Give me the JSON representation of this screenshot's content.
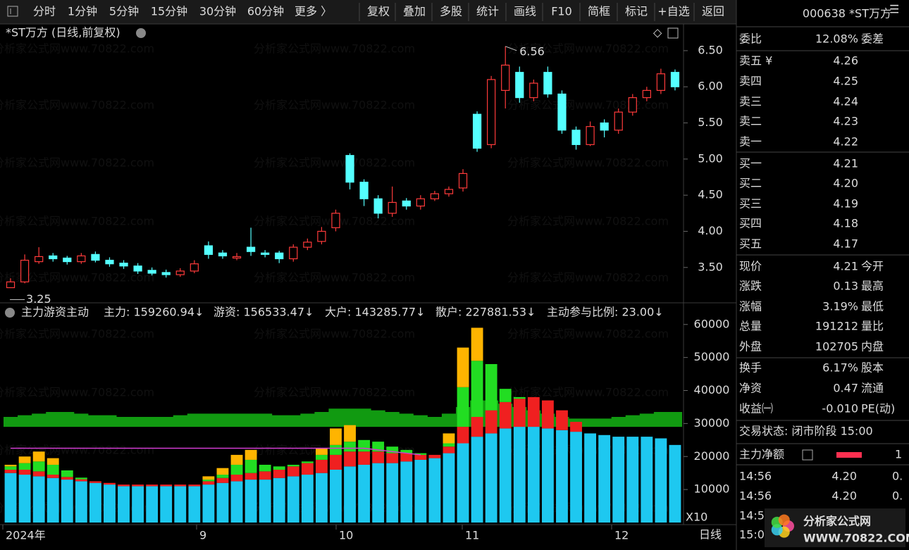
{
  "toolbar": {
    "periods": [
      "分时",
      "1分钟",
      "5分钟",
      "15分钟",
      "30分钟",
      "60分钟"
    ],
    "more": "更多 〉",
    "buttons": [
      "复权",
      "叠加",
      "多股",
      "统计",
      "画线",
      "F10",
      "简框",
      "标记",
      "+自选",
      "返回"
    ]
  },
  "watermark": "分析家公式网www.70822.com",
  "chart_data": [
    {
      "type": "candlestick",
      "title": "*ST万方 (日线,前复权)",
      "open": [
        3.22,
        3.3,
        3.58,
        3.66,
        3.63,
        3.58,
        3.68,
        3.6,
        3.56,
        3.52,
        3.46,
        3.43,
        3.4,
        3.45,
        3.8,
        3.7,
        3.63,
        3.78,
        3.7,
        3.7,
        3.62,
        3.78,
        3.86,
        4.05,
        5.05,
        4.68,
        4.45,
        4.25,
        4.42,
        4.35,
        4.45,
        4.52,
        4.6,
        5.62,
        5.2,
        5.95,
        6.2,
        5.85,
        6.2,
        5.9,
        5.4,
        5.2,
        5.5,
        5.4,
        5.65,
        5.85,
        5.95,
        6.2
      ],
      "high": [
        3.35,
        3.68,
        3.78,
        3.7,
        3.66,
        3.7,
        3.72,
        3.64,
        3.6,
        3.56,
        3.5,
        3.47,
        3.49,
        3.6,
        3.86,
        3.74,
        3.7,
        4.05,
        3.74,
        3.73,
        3.82,
        3.9,
        4.06,
        4.3,
        5.08,
        4.72,
        4.5,
        4.62,
        4.46,
        4.5,
        4.56,
        4.62,
        4.86,
        5.66,
        6.15,
        6.56,
        6.28,
        6.1,
        6.28,
        5.95,
        5.45,
        5.52,
        5.55,
        5.7,
        5.9,
        6.0,
        6.25,
        6.24
      ],
      "low": [
        3.25,
        3.28,
        3.55,
        3.58,
        3.54,
        3.55,
        3.57,
        3.51,
        3.48,
        3.41,
        3.39,
        3.36,
        3.37,
        3.42,
        3.62,
        3.62,
        3.6,
        3.66,
        3.64,
        3.56,
        3.58,
        3.74,
        3.82,
        4.0,
        4.58,
        4.35,
        4.18,
        4.2,
        4.3,
        4.3,
        4.42,
        4.48,
        4.55,
        5.1,
        5.15,
        5.7,
        5.78,
        5.8,
        5.85,
        5.35,
        5.13,
        5.18,
        5.3,
        5.35,
        5.6,
        5.8,
        5.9,
        5.95
      ],
      "close": [
        3.3,
        3.6,
        3.65,
        3.62,
        3.58,
        3.66,
        3.6,
        3.55,
        3.52,
        3.45,
        3.42,
        3.4,
        3.45,
        3.55,
        3.68,
        3.66,
        3.65,
        3.72,
        3.68,
        3.62,
        3.78,
        3.85,
        4.0,
        4.25,
        4.68,
        4.45,
        4.25,
        4.4,
        4.35,
        4.45,
        4.52,
        4.58,
        4.8,
        5.15,
        6.1,
        6.3,
        5.85,
        6.05,
        5.9,
        5.4,
        5.2,
        5.45,
        5.4,
        5.65,
        5.85,
        5.95,
        6.18,
        6.0
      ],
      "up_color": "#ff3b3b",
      "down_color": "#54ffff",
      "ylim": [
        3.03,
        6.86
      ],
      "yticks": [
        {
          "value": 3.5,
          "label": "3.50"
        },
        {
          "value": 4,
          "label": "4.00"
        },
        {
          "value": 4.5,
          "label": "4.50"
        },
        {
          "value": 5,
          "label": "5.00"
        },
        {
          "value": 5.5,
          "label": "5.50"
        },
        {
          "value": 6,
          "label": "6.00"
        },
        {
          "value": 6.5,
          "label": "6.50"
        }
      ],
      "annotations": [
        {
          "value": 6.56,
          "label": "6.56",
          "at": "high"
        },
        {
          "value": 3.25,
          "label": "3.25",
          "at": "low"
        }
      ],
      "x_labels": [
        "2024年",
        "9",
        "10",
        "11",
        "12"
      ],
      "period": "日线"
    },
    {
      "type": "stacked-bar",
      "title": "主力游资主动",
      "series": [
        {
          "label": "散户: 227881.53↓",
          "color": "#1ec8f0",
          "values": [
            15000,
            14500,
            14000,
            13500,
            13000,
            12500,
            12000,
            11500,
            11000,
            11000,
            11000,
            11000,
            11000,
            11000,
            11500,
            12000,
            12500,
            13000,
            13000,
            13500,
            14000,
            14500,
            15000,
            16000,
            17000,
            17500,
            18000,
            18000,
            18500,
            19000,
            19500,
            21000,
            24000,
            26000,
            27000,
            28500,
            29000,
            29000,
            28500,
            28000,
            27500,
            27000,
            26500,
            26000,
            26000,
            26000,
            25500,
            23500
          ]
        },
        {
          "label": "大户: 143285.77↓",
          "color": "#f02020",
          "values": [
            1000,
            1500,
            1500,
            1000,
            800,
            600,
            500,
            500,
            500,
            500,
            500,
            500,
            500,
            500,
            1000,
            1500,
            2000,
            2000,
            2500,
            2500,
            3000,
            3500,
            4000,
            4500,
            4500,
            4000,
            3500,
            3000,
            2500,
            1500,
            1000,
            2000,
            5000,
            6000,
            7000,
            8000,
            8500,
            9000,
            8500,
            6000,
            3000,
            0,
            0,
            0,
            0,
            0,
            0,
            0
          ]
        },
        {
          "label": "游资: 156533.47↓",
          "color": "#22dd22",
          "values": [
            1000,
            2000,
            3000,
            3000,
            2000,
            500,
            0,
            0,
            0,
            0,
            0,
            0,
            0,
            0,
            500,
            1000,
            3000,
            4000,
            2000,
            1000,
            500,
            500,
            1500,
            3000,
            3000,
            3500,
            3000,
            2000,
            1000,
            500,
            0,
            1000,
            12000,
            17000,
            14000,
            4000,
            500,
            0,
            0,
            0,
            0,
            0,
            0,
            0,
            0,
            0,
            0,
            0
          ]
        },
        {
          "label": "主力: 159260.94↓",
          "color": "#ffb400",
          "values": [
            500,
            2000,
            3000,
            2000,
            0,
            0,
            0,
            0,
            0,
            0,
            0,
            0,
            0,
            0,
            1000,
            2000,
            3000,
            3000,
            0,
            0,
            0,
            0,
            2000,
            5000,
            5000,
            0,
            0,
            0,
            0,
            0,
            0,
            3000,
            12000,
            10000,
            0,
            0,
            0,
            0,
            0,
            0,
            0,
            0,
            0,
            0,
            0,
            0,
            0,
            0
          ]
        }
      ],
      "line": {
        "label": "主动参与比例: 23.00↓",
        "color": "#d23cd2",
        "label_color": "#e6c800",
        "values": [
          22500,
          22500,
          22500,
          22500,
          22500,
          22500,
          22500,
          22500,
          22500,
          22500,
          22500,
          22500,
          22500,
          22500,
          22500,
          22500,
          22500,
          22500,
          22500,
          22500,
          22500,
          22500,
          22500,
          22500,
          22500,
          22500,
          22000,
          21500,
          21000,
          20500,
          null,
          null,
          null,
          null,
          null,
          null,
          null,
          null,
          null,
          null,
          null,
          null,
          null,
          null,
          null,
          null,
          null,
          null
        ]
      },
      "band": {
        "color": "#119a11",
        "low": 29000,
        "high": [
          32000,
          32500,
          33000,
          33500,
          33500,
          33000,
          32500,
          32500,
          32000,
          32000,
          32000,
          32000,
          32500,
          33000,
          33000,
          33000,
          33000,
          33000,
          33000,
          32500,
          32500,
          33000,
          33500,
          34500,
          34500,
          34500,
          34000,
          33500,
          33000,
          32500,
          32000,
          33000,
          35000,
          37000,
          37000,
          36000,
          35000,
          34000,
          33000,
          32000,
          31500,
          31500,
          31500,
          32000,
          32500,
          33000,
          33500,
          33500
        ]
      },
      "ylim": [
        0,
        64000
      ],
      "yticks": [
        10000,
        20000,
        30000,
        40000,
        50000,
        60000
      ],
      "scale_note": "X10"
    }
  ],
  "quote": {
    "code_name": "000638 *ST万方",
    "weibi": {
      "label": "委比",
      "value": "12.08%",
      "label2": "委差"
    },
    "asks": [
      [
        "卖五 ¥",
        "4.26"
      ],
      [
        "卖四",
        "4.25"
      ],
      [
        "卖三",
        "4.24"
      ],
      [
        "卖二",
        "4.23"
      ],
      [
        "卖一",
        "4.22"
      ]
    ],
    "bids": [
      [
        "买一",
        "4.21"
      ],
      [
        "买二",
        "4.20"
      ],
      [
        "买三",
        "4.19"
      ],
      [
        "买四",
        "4.18"
      ],
      [
        "买五",
        "4.17"
      ]
    ],
    "stats": [
      {
        "label": "现价",
        "value": "4.21",
        "label2": "今开",
        "color": "#ff4040"
      },
      {
        "label": "涨跌",
        "value": "0.13",
        "label2": "最高",
        "color": "#ff4040"
      },
      {
        "label": "涨幅",
        "value": "3.19%",
        "label2": "最低",
        "color": "#ff4040"
      },
      {
        "label": "总量",
        "value": "191212",
        "label2": "量比",
        "color": "#e8c840"
      },
      {
        "label": "外盘",
        "value": "102705",
        "label2": "内盘",
        "color": "#ff4040"
      }
    ],
    "stats2": [
      {
        "label": "换手",
        "value": "6.17%",
        "label2": "股本",
        "color": "#e6e6e6"
      },
      {
        "label": "净资",
        "value": "0.47",
        "label2": "流通",
        "color": "#e6e6e6"
      },
      {
        "label": "收益㈠",
        "value": "-0.010",
        "label2": "PE(动)",
        "color": "#e6e6e6"
      }
    ],
    "status": "交易状态: 闭市阶段 15:00",
    "net_flow": "主力净额",
    "net_flow_value": "1",
    "ticks": [
      [
        "14:56",
        "4.20",
        "0."
      ],
      [
        "14:56",
        "4.20",
        "0."
      ],
      [
        "14:5"
      ],
      [
        "15:0"
      ]
    ]
  },
  "logo": {
    "name": "分析家公式网",
    "url": "WWW.70822.COM"
  }
}
